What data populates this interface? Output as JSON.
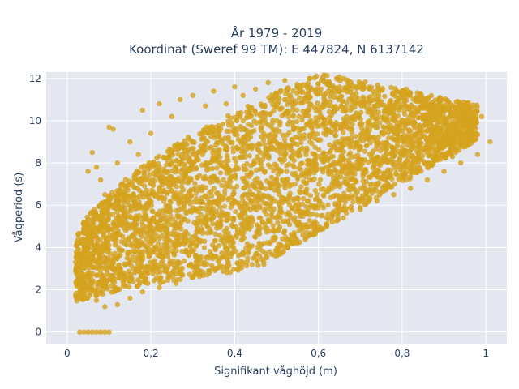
{
  "chart_data": {
    "type": "scatter",
    "title_lines": [
      "År 1979 - 2019",
      "Koordinat (Sweref 99 TM): E 447824, N 6137142"
    ],
    "xlabel": "Signifikant våghöjd (m)",
    "ylabel": "Vågperiod (s)",
    "xlim": [
      -0.05,
      1.05
    ],
    "ylim": [
      -0.55,
      12.3
    ],
    "x_ticks": [
      0,
      0.2,
      0.4,
      0.6,
      0.8,
      1
    ],
    "x_tick_labels": [
      "0",
      "0,2",
      "0,4",
      "0,6",
      "0,8",
      "1"
    ],
    "y_ticks": [
      0,
      2,
      4,
      6,
      8,
      10,
      12
    ],
    "y_tick_labels": [
      "0",
      "2",
      "4",
      "6",
      "8",
      "10",
      "12"
    ],
    "grid": true,
    "legend": "none",
    "colors": {
      "marker": "#d4a31e",
      "background": "#e5e7f0",
      "grid": "#ffffff"
    },
    "series": [
      {
        "points": [
          [
            0.03,
            0.0
          ],
          [
            0.04,
            0.0
          ],
          [
            0.05,
            0.0
          ],
          [
            0.06,
            0.0
          ],
          [
            0.07,
            0.0
          ],
          [
            0.08,
            0.0
          ],
          [
            0.09,
            0.0
          ],
          [
            0.1,
            0.0
          ],
          [
            0.02,
            1.7
          ],
          [
            0.03,
            3.5
          ],
          [
            0.04,
            5.2
          ],
          [
            0.05,
            7.6
          ],
          [
            0.06,
            8.5
          ],
          [
            0.07,
            7.8
          ],
          [
            0.08,
            7.2
          ],
          [
            0.09,
            6.5
          ],
          [
            0.1,
            9.7
          ],
          [
            0.11,
            9.6
          ],
          [
            0.12,
            8.0
          ],
          [
            0.13,
            7.0
          ],
          [
            0.15,
            9.0
          ],
          [
            0.17,
            8.4
          ],
          [
            0.18,
            10.5
          ],
          [
            0.2,
            9.4
          ],
          [
            0.22,
            10.8
          ],
          [
            0.25,
            10.2
          ],
          [
            0.27,
            11.0
          ],
          [
            0.3,
            11.2
          ],
          [
            0.33,
            10.7
          ],
          [
            0.35,
            11.4
          ],
          [
            0.38,
            10.8
          ],
          [
            0.4,
            11.6
          ],
          [
            0.42,
            11.2
          ],
          [
            0.45,
            11.5
          ],
          [
            0.48,
            11.8
          ],
          [
            0.5,
            11.3
          ],
          [
            0.52,
            11.9
          ],
          [
            0.55,
            11.6
          ],
          [
            0.58,
            12.0
          ],
          [
            0.6,
            11.5
          ],
          [
            0.63,
            11.4
          ],
          [
            0.66,
            12.0
          ],
          [
            0.69,
            11.3
          ],
          [
            0.72,
            11.1
          ],
          [
            0.75,
            10.9
          ],
          [
            0.78,
            10.6
          ],
          [
            0.81,
            11.5
          ],
          [
            0.84,
            11.0
          ],
          [
            0.87,
            10.5
          ],
          [
            0.9,
            10.0
          ],
          [
            0.93,
            9.8
          ],
          [
            0.96,
            9.5
          ],
          [
            0.99,
            10.2
          ],
          [
            1.01,
            9.0
          ],
          [
            0.05,
            2.0
          ],
          [
            0.07,
            1.5
          ],
          [
            0.09,
            1.2
          ],
          [
            0.12,
            1.3
          ],
          [
            0.15,
            1.6
          ],
          [
            0.18,
            1.9
          ],
          [
            0.22,
            2.1
          ],
          [
            0.26,
            2.3
          ],
          [
            0.3,
            2.6
          ],
          [
            0.34,
            2.9
          ],
          [
            0.38,
            3.1
          ],
          [
            0.42,
            3.3
          ],
          [
            0.46,
            3.6
          ],
          [
            0.5,
            3.9
          ],
          [
            0.54,
            4.2
          ],
          [
            0.58,
            4.6
          ],
          [
            0.62,
            5.0
          ],
          [
            0.66,
            5.4
          ],
          [
            0.7,
            5.8
          ],
          [
            0.74,
            6.2
          ],
          [
            0.78,
            6.5
          ],
          [
            0.82,
            6.8
          ],
          [
            0.86,
            7.2
          ],
          [
            0.9,
            7.6
          ],
          [
            0.94,
            8.0
          ],
          [
            0.98,
            8.4
          ],
          [
            0.97,
            9.2
          ],
          [
            0.95,
            8.8
          ],
          [
            0.92,
            8.9
          ],
          [
            0.88,
            9.0
          ],
          [
            0.85,
            8.7
          ],
          [
            0.8,
            8.5
          ],
          [
            0.08,
            4.0
          ],
          [
            0.1,
            5.5
          ],
          [
            0.12,
            3.0
          ],
          [
            0.14,
            4.8
          ],
          [
            0.16,
            6.2
          ],
          [
            0.18,
            3.6
          ],
          [
            0.2,
            5.0
          ],
          [
            0.22,
            6.8
          ],
          [
            0.24,
            4.4
          ],
          [
            0.26,
            7.2
          ],
          [
            0.28,
            5.8
          ],
          [
            0.3,
            8.0
          ],
          [
            0.32,
            4.9
          ],
          [
            0.34,
            6.6
          ],
          [
            0.36,
            8.6
          ],
          [
            0.38,
            5.6
          ],
          [
            0.4,
            7.4
          ],
          [
            0.42,
            9.2
          ],
          [
            0.44,
            6.1
          ],
          [
            0.46,
            8.0
          ],
          [
            0.48,
            9.8
          ],
          [
            0.5,
            6.9
          ],
          [
            0.52,
            8.6
          ],
          [
            0.54,
            10.2
          ],
          [
            0.56,
            7.4
          ],
          [
            0.58,
            9.0
          ],
          [
            0.6,
            10.5
          ],
          [
            0.62,
            7.8
          ],
          [
            0.64,
            9.3
          ],
          [
            0.66,
            8.2
          ],
          [
            0.68,
            9.6
          ],
          [
            0.7,
            8.0
          ],
          [
            0.72,
            9.2
          ],
          [
            0.74,
            7.6
          ],
          [
            0.76,
            8.9
          ],
          [
            0.78,
            7.9
          ],
          [
            0.8,
            9.1
          ],
          [
            0.84,
            8.2
          ],
          [
            0.88,
            8.4
          ],
          [
            0.92,
            8.3
          ]
        ]
      }
    ]
  }
}
